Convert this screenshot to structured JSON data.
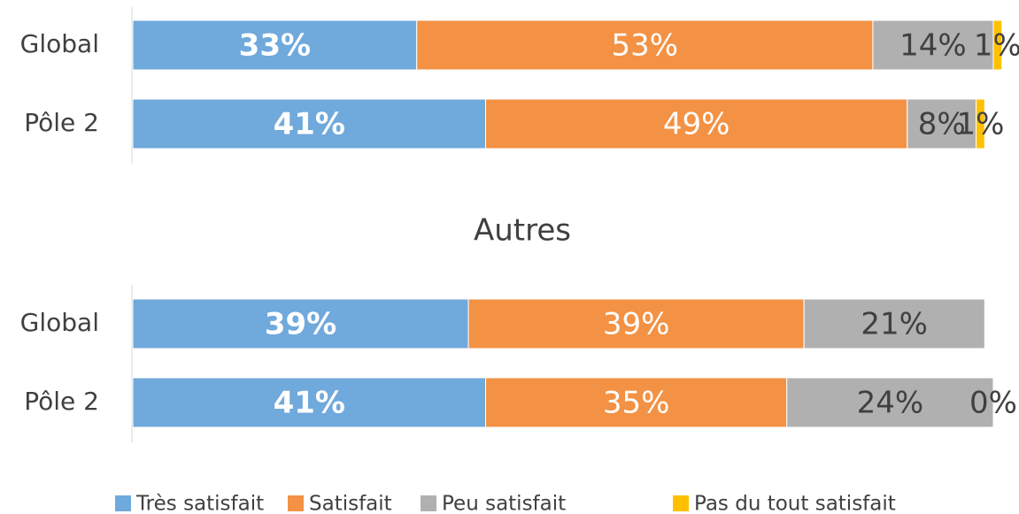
{
  "chart_data": [
    {
      "type": "bar",
      "orientation": "horizontal",
      "stacked": true,
      "categories": [
        "Global",
        "Pôle 2"
      ],
      "xlim": [
        0,
        100
      ],
      "series": [
        {
          "color": "#70a9dc",
          "values": [
            33,
            41
          ],
          "value_labels": [
            "33%",
            "41%"
          ]
        },
        {
          "color": "#f39244",
          "values": [
            53,
            49
          ],
          "value_labels": [
            "53%",
            "49%"
          ]
        },
        {
          "color": "#b0b0b0",
          "values": [
            14,
            8
          ],
          "value_labels": [
            "14%",
            "8%"
          ]
        },
        {
          "color": "#ffc000",
          "values": [
            1,
            1
          ],
          "value_labels": [
            "1%",
            "1%"
          ]
        }
      ]
    },
    {
      "type": "bar",
      "orientation": "horizontal",
      "stacked": true,
      "title": "Autres",
      "categories": [
        "Global",
        "Pôle 2"
      ],
      "xlim": [
        0,
        100
      ],
      "series": [
        {
          "name": "Très satisfait",
          "color": "#70a9dc",
          "values": [
            39,
            41
          ],
          "value_labels": [
            "39%",
            "41%"
          ]
        },
        {
          "name": "Satisfait",
          "color": "#f39244",
          "values": [
            39,
            35
          ],
          "value_labels": [
            "39%",
            "35%"
          ]
        },
        {
          "name": "Peu satisfait",
          "color": "#b0b0b0",
          "values": [
            21,
            24
          ],
          "value_labels": [
            "21%",
            "24%"
          ]
        },
        {
          "name": "Pas du tout satisfait",
          "color": "#ffc000",
          "values": [
            null,
            0
          ],
          "value_labels": [
            null,
            "0%"
          ]
        }
      ]
    }
  ]
}
